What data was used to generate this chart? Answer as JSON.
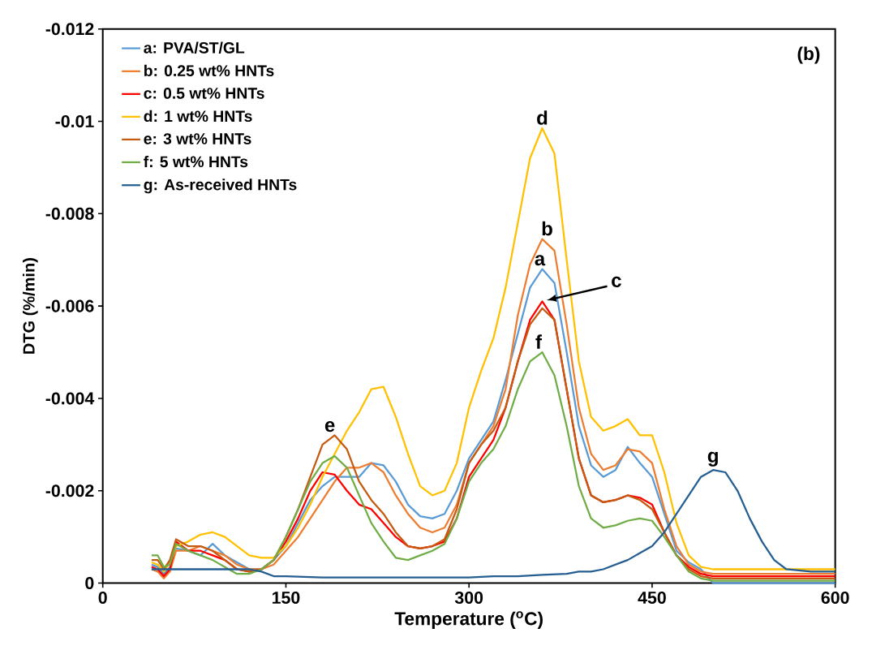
{
  "chart_data": {
    "type": "line",
    "xlabel": "Temperature ($^{o}$C)",
    "ylabel": "DTG (%/min)",
    "x": [
      40,
      45,
      50,
      55,
      60,
      70,
      80,
      90,
      100,
      110,
      120,
      130,
      140,
      150,
      160,
      170,
      180,
      190,
      200,
      210,
      220,
      230,
      240,
      250,
      260,
      270,
      280,
      290,
      300,
      310,
      320,
      330,
      340,
      350,
      360,
      370,
      380,
      390,
      400,
      410,
      420,
      430,
      440,
      450,
      460,
      470,
      480,
      490,
      500,
      510,
      520,
      540,
      560,
      580,
      600
    ],
    "xlim": [
      0,
      600
    ],
    "xticks": [
      0,
      150,
      300,
      450,
      600
    ],
    "ylim": [
      0,
      -0.012
    ],
    "yticks": [
      0,
      -0.002,
      -0.004,
      -0.006,
      -0.008,
      -0.01,
      -0.012
    ],
    "legend": "top left",
    "grid": false,
    "marker": "none",
    "line_style": "solid",
    "series": [
      {
        "name": "a: PVA/ST/GL",
        "color": "#5b9bd5",
        "values": [
          -0.0004,
          -0.00035,
          -0.0002,
          -0.00035,
          -0.00075,
          -0.0007,
          -0.0006,
          -0.00085,
          -0.0006,
          -0.00045,
          -0.0003,
          -0.0003,
          -0.0005,
          -0.0008,
          -0.0013,
          -0.0018,
          -0.0021,
          -0.0023,
          -0.0023,
          -0.0023,
          -0.0026,
          -0.00255,
          -0.0022,
          -0.0017,
          -0.00145,
          -0.0014,
          -0.0015,
          -0.002,
          -0.0027,
          -0.0031,
          -0.0035,
          -0.0044,
          -0.0054,
          -0.0064,
          -0.0068,
          -0.0065,
          -0.005,
          -0.0034,
          -0.00255,
          -0.0023,
          -0.00245,
          -0.00295,
          -0.0026,
          -0.0023,
          -0.0015,
          -0.0007,
          -0.00045,
          -0.0003,
          0,
          0,
          0,
          0,
          0,
          0,
          0
        ]
      },
      {
        "name": "b: 0.25 wt% HNTs",
        "color": "#ed7d31",
        "values": [
          -0.0003,
          -0.00025,
          -0.0001,
          -0.00025,
          -0.0007,
          -0.0007,
          -0.0008,
          -0.0007,
          -0.0006,
          -0.0004,
          -0.0003,
          -0.0003,
          -0.0004,
          -0.0007,
          -0.001,
          -0.0014,
          -0.0018,
          -0.0022,
          -0.0025,
          -0.0025,
          -0.0026,
          -0.0024,
          -0.0019,
          -0.0015,
          -0.0012,
          -0.0011,
          -0.0012,
          -0.0017,
          -0.0026,
          -0.003,
          -0.0034,
          -0.0042,
          -0.0058,
          -0.0069,
          -0.00745,
          -0.0072,
          -0.0056,
          -0.0038,
          -0.0028,
          -0.00245,
          -0.00255,
          -0.0029,
          -0.00285,
          -0.0026,
          -0.0016,
          -0.0008,
          -0.0004,
          -0.00025,
          -0.0002,
          -0.0002,
          -0.0002,
          -0.0002,
          -0.0002,
          -0.0002,
          -0.0002
        ]
      },
      {
        "name": "c: 0.5 wt% HNTs",
        "color": "#ff0000",
        "values": [
          -0.00035,
          -0.0003,
          -0.00015,
          -0.0003,
          -0.0009,
          -0.0007,
          -0.0007,
          -0.0006,
          -0.0005,
          -0.0003,
          -0.00025,
          -0.0003,
          -0.0005,
          -0.0009,
          -0.0014,
          -0.002,
          -0.0024,
          -0.00235,
          -0.002,
          -0.0017,
          -0.0016,
          -0.0013,
          -0.001,
          -0.0008,
          -0.00075,
          -0.0008,
          -0.0009,
          -0.0014,
          -0.0023,
          -0.0027,
          -0.0031,
          -0.0038,
          -0.0048,
          -0.0057,
          -0.0061,
          -0.0057,
          -0.0042,
          -0.0027,
          -0.0019,
          -0.00175,
          -0.0018,
          -0.0019,
          -0.00185,
          -0.0017,
          -0.0011,
          -0.0006,
          -0.00035,
          -0.0002,
          -0.00015,
          -0.00015,
          -0.00015,
          -0.00015,
          -0.00015,
          -0.00015,
          -0.00015
        ]
      },
      {
        "name": "d: 1 wt% HNTs",
        "color": "#ffc000",
        "values": [
          -0.00045,
          -0.0004,
          -0.00025,
          -0.00045,
          -0.0008,
          -0.0009,
          -0.00105,
          -0.0011,
          -0.001,
          -0.0008,
          -0.0006,
          -0.00055,
          -0.00055,
          -0.0008,
          -0.0012,
          -0.0017,
          -0.0023,
          -0.0028,
          -0.0033,
          -0.0037,
          -0.0042,
          -0.00425,
          -0.0036,
          -0.0028,
          -0.0021,
          -0.0019,
          -0.002,
          -0.0026,
          -0.0038,
          -0.0046,
          -0.0053,
          -0.0064,
          -0.0078,
          -0.0092,
          -0.00985,
          -0.0093,
          -0.007,
          -0.0048,
          -0.0036,
          -0.0033,
          -0.0034,
          -0.00355,
          -0.0032,
          -0.0032,
          -0.0024,
          -0.0013,
          -0.0006,
          -0.00035,
          -0.0003,
          -0.0003,
          -0.0003,
          -0.0003,
          -0.0003,
          -0.0003,
          -0.0003
        ]
      },
      {
        "name": "e: 3 wt% HNTs",
        "color": "#c55a11",
        "values": [
          -0.0005,
          -0.0005,
          -0.0003,
          -0.0005,
          -0.00095,
          -0.0008,
          -0.0008,
          -0.0007,
          -0.0005,
          -0.0003,
          -0.00025,
          -0.0003,
          -0.0005,
          -0.001,
          -0.0016,
          -0.0023,
          -0.003,
          -0.0032,
          -0.0029,
          -0.0022,
          -0.0018,
          -0.0015,
          -0.0011,
          -0.0008,
          -0.00075,
          -0.0008,
          -0.00095,
          -0.0016,
          -0.0026,
          -0.003,
          -0.0033,
          -0.0038,
          -0.0048,
          -0.0056,
          -0.00595,
          -0.0057,
          -0.0042,
          -0.0027,
          -0.0019,
          -0.00175,
          -0.0018,
          -0.0019,
          -0.0018,
          -0.0016,
          -0.0011,
          -0.0006,
          -0.0003,
          -0.00015,
          -0.0001,
          -0.0001,
          -0.0001,
          -0.0001,
          -0.0001,
          -0.0001,
          -0.0001
        ]
      },
      {
        "name": "f: 5 wt% HNTs",
        "color": "#70ad47",
        "values": [
          -0.0006,
          -0.0006,
          -0.00035,
          -0.0004,
          -0.00085,
          -0.0007,
          -0.0006,
          -0.0005,
          -0.00035,
          -0.0002,
          -0.0002,
          -0.0003,
          -0.0005,
          -0.001,
          -0.0016,
          -0.0022,
          -0.0026,
          -0.00275,
          -0.0025,
          -0.0019,
          -0.0013,
          -0.0009,
          -0.00055,
          -0.0005,
          -0.0006,
          -0.0007,
          -0.00085,
          -0.0014,
          -0.0022,
          -0.0026,
          -0.0029,
          -0.0034,
          -0.0042,
          -0.0048,
          -0.005,
          -0.0045,
          -0.0034,
          -0.0021,
          -0.0014,
          -0.0012,
          -0.00125,
          -0.00135,
          -0.0014,
          -0.00135,
          -0.001,
          -0.0006,
          -0.00025,
          -0.0001,
          -5e-05,
          -5e-05,
          -5e-05,
          -5e-05,
          -5e-05,
          -5e-05,
          -5e-05
        ]
      },
      {
        "name": "g: As-received HNTs",
        "color": "#255e91",
        "x": [
          40,
          60,
          80,
          100,
          120,
          130,
          140,
          150,
          180,
          220,
          260,
          300,
          320,
          340,
          360,
          380,
          390,
          400,
          410,
          420,
          430,
          440,
          450,
          460,
          470,
          480,
          490,
          500,
          510,
          520,
          530,
          540,
          550,
          560,
          580,
          600
        ],
        "values": [
          -0.0003,
          -0.0003,
          -0.0003,
          -0.0003,
          -0.0003,
          -0.00025,
          -0.00015,
          -0.00015,
          -0.00012,
          -0.00012,
          -0.00012,
          -0.00012,
          -0.00015,
          -0.00015,
          -0.00018,
          -0.0002,
          -0.00025,
          -0.00025,
          -0.0003,
          -0.0004,
          -0.0005,
          -0.00065,
          -0.0008,
          -0.0011,
          -0.0015,
          -0.0019,
          -0.0023,
          -0.00245,
          -0.0024,
          -0.002,
          -0.0014,
          -0.0009,
          -0.0005,
          -0.0003,
          -0.00025,
          -0.00025
        ]
      }
    ],
    "annotations": [
      {
        "text": "a",
        "x": 358,
        "y": -0.0068
      },
      {
        "text": "b",
        "x": 364,
        "y": -0.00745
      },
      "c",
      {
        "text": "d",
        "x": 360,
        "y": -0.00985
      },
      {
        "text": "e",
        "x": 186,
        "y": -0.0032
      },
      {
        "text": "f",
        "x": 357,
        "y": -0.005
      },
      {
        "text": "g",
        "x": 500,
        "y": -0.00245
      },
      "(b)"
    ]
  }
}
